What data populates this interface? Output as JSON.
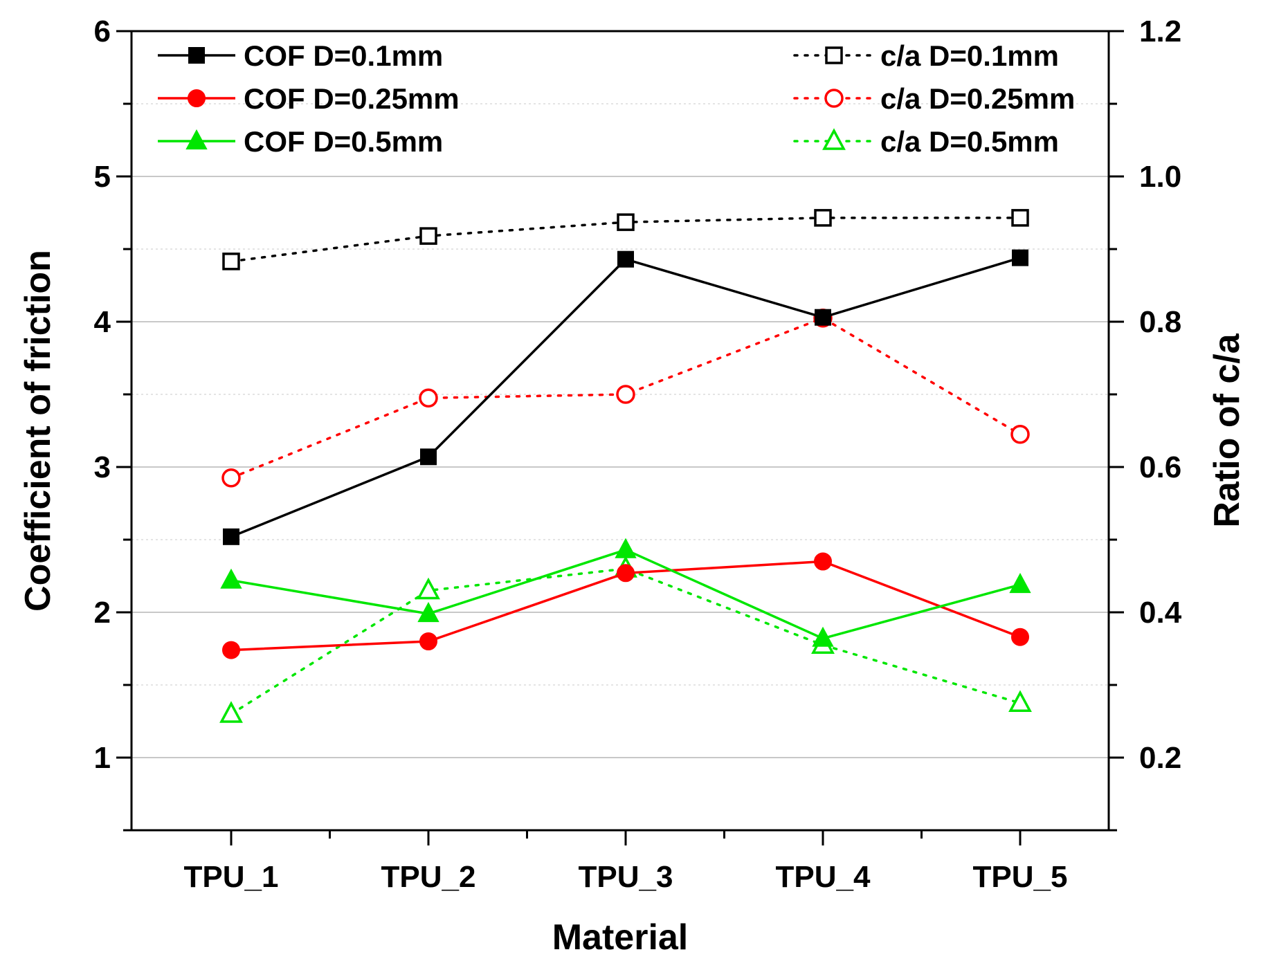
{
  "chart_data": {
    "type": "line",
    "title": "",
    "xlabel": "Material",
    "ylabel": "Coefficient of friction",
    "y2label": "Ratio of c/a",
    "categories": [
      "TPU_1",
      "TPU_2",
      "TPU_3",
      "TPU_4",
      "TPU_5"
    ],
    "ylim": [
      0.5,
      6
    ],
    "y2lim": [
      0.1,
      1.2
    ],
    "yticks": [
      1,
      2,
      3,
      4,
      5,
      6
    ],
    "y2ticks": [
      0.2,
      0.4,
      0.6,
      0.8,
      1.0,
      1.2
    ],
    "ytick_labels": [
      "1",
      "2",
      "3",
      "4",
      "5",
      "6"
    ],
    "y2tick_labels": [
      "0.2",
      "0.4",
      "0.6",
      "0.8",
      "1.0",
      "1.2"
    ],
    "grid": true,
    "legend": [
      "left: COF series, top-left",
      "right: c/a series, top-right"
    ],
    "series": [
      {
        "name": "COF D=0.1mm",
        "axis": "left",
        "color": "#000000",
        "marker": "square",
        "filled": true,
        "line": "solid",
        "values": [
          2.52,
          3.07,
          4.43,
          4.03,
          4.44
        ]
      },
      {
        "name": "COF D=0.25mm",
        "axis": "left",
        "color": "#ff0000",
        "marker": "circle",
        "filled": true,
        "line": "solid",
        "values": [
          1.74,
          1.8,
          2.27,
          2.35,
          1.83
        ]
      },
      {
        "name": "COF D=0.5mm",
        "axis": "left",
        "color": "#00e600",
        "marker": "triangle",
        "filled": true,
        "line": "solid",
        "values": [
          2.22,
          1.99,
          2.43,
          1.82,
          2.19
        ]
      },
      {
        "name": "c/a D=0.1mm",
        "axis": "right",
        "color": "#000000",
        "marker": "square",
        "filled": false,
        "line": "dotted",
        "values": [
          0.883,
          0.918,
          0.937,
          0.943,
          0.943
        ]
      },
      {
        "name": "c/a D=0.25mm",
        "axis": "right",
        "color": "#ff0000",
        "marker": "circle",
        "filled": false,
        "line": "dotted",
        "values": [
          0.585,
          0.695,
          0.7,
          0.805,
          0.645
        ]
      },
      {
        "name": "c/a D=0.5mm",
        "axis": "right",
        "color": "#00e600",
        "marker": "triangle",
        "filled": false,
        "line": "dotted",
        "values": [
          0.26,
          0.43,
          0.46,
          0.355,
          0.275
        ]
      }
    ]
  }
}
